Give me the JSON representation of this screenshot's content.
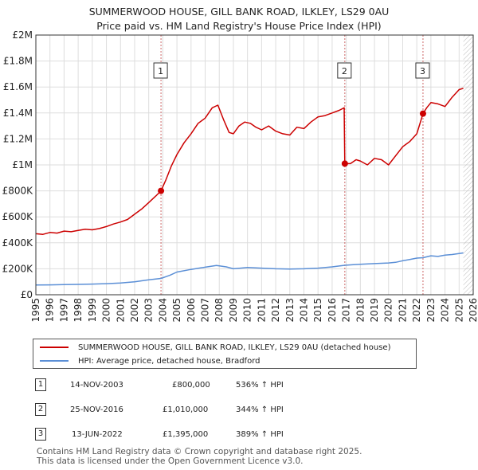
{
  "title_line1": "SUMMERWOOD HOUSE, GILL BANK ROAD, ILKLEY, LS29 0AU",
  "title_line2": "Price paid vs. HM Land Registry's House Price Index (HPI)",
  "legend": {
    "property": "SUMMERWOOD HOUSE, GILL BANK ROAD, ILKLEY, LS29 0AU (detached house)",
    "hpi": "HPI: Average price, detached house, Bradford"
  },
  "transactions": [
    {
      "num": "1",
      "date": "14-NOV-2003",
      "price": "£800,000",
      "hpi": "536% ↑ HPI"
    },
    {
      "num": "2",
      "date": "25-NOV-2016",
      "price": "£1,010,000",
      "hpi": "344% ↑ HPI"
    },
    {
      "num": "3",
      "date": "13-JUN-2022",
      "price": "£1,395,000",
      "hpi": "389% ↑ HPI"
    }
  ],
  "footer_line1": "Contains HM Land Registry data © Crown copyright and database right 2025.",
  "footer_line2": "This data is licensed under the Open Government Licence v3.0.",
  "chart_data": {
    "type": "line",
    "title": "SUMMERWOOD HOUSE, GILL BANK ROAD, ILKLEY, LS29 0AU",
    "subtitle": "Price paid vs. HM Land Registry's House Price Index (HPI)",
    "xlabel": "",
    "ylabel": "",
    "xlim": [
      1995,
      2026
    ],
    "ylim": [
      0,
      2000000
    ],
    "x_ticks": [
      1995,
      1996,
      1997,
      1998,
      1999,
      2000,
      2001,
      2002,
      2003,
      2004,
      2005,
      2006,
      2007,
      2008,
      2009,
      2010,
      2011,
      2012,
      2013,
      2014,
      2015,
      2016,
      2017,
      2018,
      2019,
      2020,
      2021,
      2022,
      2023,
      2024,
      2025,
      2026
    ],
    "y_ticks": [
      {
        "value": 0,
        "label": "£0"
      },
      {
        "value": 200000,
        "label": "£200K"
      },
      {
        "value": 400000,
        "label": "£400K"
      },
      {
        "value": 600000,
        "label": "£600K"
      },
      {
        "value": 800000,
        "label": "£800K"
      },
      {
        "value": 1000000,
        "label": "£1M"
      },
      {
        "value": 1200000,
        "label": "£1.2M"
      },
      {
        "value": 1400000,
        "label": "£1.4M"
      },
      {
        "value": 1600000,
        "label": "£1.6M"
      },
      {
        "value": 1800000,
        "label": "£1.8M"
      },
      {
        "value": 2000000,
        "label": "£2M"
      }
    ],
    "grid": true,
    "colors": {
      "property": "#cc0000",
      "hpi": "#5b8fd6",
      "grid": "#dddddd",
      "vline": "#cc6666"
    },
    "series": [
      {
        "name": "SUMMERWOOD HOUSE, GILL BANK ROAD, ILKLEY, LS29 0AU (detached house)",
        "color": "#cc0000",
        "x": [
          1995.0,
          1995.5,
          1996.0,
          1996.5,
          1997.0,
          1997.5,
          1998.0,
          1998.5,
          1999.0,
          1999.5,
          2000.0,
          2000.5,
          2001.0,
          2001.5,
          2002.0,
          2002.5,
          2003.0,
          2003.5,
          2003.87,
          2004.2,
          2004.6,
          2005.0,
          2005.5,
          2006.0,
          2006.5,
          2007.0,
          2007.5,
          2007.9,
          2008.3,
          2008.7,
          2009.0,
          2009.4,
          2009.8,
          2010.2,
          2010.6,
          2011.0,
          2011.5,
          2012.0,
          2012.5,
          2013.0,
          2013.5,
          2014.0,
          2014.5,
          2015.0,
          2015.5,
          2016.0,
          2016.5,
          2016.85,
          2016.9,
          2017.3,
          2017.7,
          2018.0,
          2018.5,
          2019.0,
          2019.5,
          2020.0,
          2020.5,
          2021.0,
          2021.5,
          2022.0,
          2022.44,
          2022.7,
          2023.0,
          2023.5,
          2024.0,
          2024.5,
          2025.0,
          2025.3
        ],
        "values": [
          470000,
          465000,
          480000,
          475000,
          490000,
          485000,
          495000,
          505000,
          500000,
          510000,
          525000,
          545000,
          560000,
          580000,
          620000,
          660000,
          710000,
          760000,
          800000,
          880000,
          990000,
          1080000,
          1170000,
          1240000,
          1320000,
          1360000,
          1440000,
          1460000,
          1350000,
          1250000,
          1240000,
          1300000,
          1330000,
          1320000,
          1290000,
          1270000,
          1300000,
          1260000,
          1240000,
          1230000,
          1290000,
          1280000,
          1330000,
          1370000,
          1380000,
          1400000,
          1420000,
          1440000,
          1010000,
          1010000,
          1040000,
          1030000,
          1000000,
          1050000,
          1040000,
          1000000,
          1070000,
          1140000,
          1180000,
          1240000,
          1395000,
          1440000,
          1480000,
          1470000,
          1450000,
          1520000,
          1580000,
          1590000
        ]
      },
      {
        "name": "HPI: Average price, detached house, Bradford",
        "color": "#5b8fd6",
        "x": [
          1995.0,
          1996.0,
          1997.0,
          1998.0,
          1999.0,
          2000.0,
          2001.0,
          2002.0,
          2003.0,
          2003.87,
          2004.5,
          2005.0,
          2006.0,
          2007.0,
          2007.8,
          2008.5,
          2009.0,
          2009.5,
          2010.0,
          2011.0,
          2012.0,
          2013.0,
          2014.0,
          2015.0,
          2016.0,
          2016.9,
          2017.5,
          2018.0,
          2019.0,
          2020.0,
          2020.5,
          2021.0,
          2021.5,
          2022.0,
          2022.44,
          2023.0,
          2023.5,
          2024.0,
          2024.5,
          2025.0,
          2025.3
        ],
        "values": [
          75000,
          76000,
          78000,
          80000,
          82000,
          85000,
          90000,
          100000,
          115000,
          126000,
          150000,
          175000,
          195000,
          212000,
          225000,
          215000,
          200000,
          205000,
          210000,
          205000,
          200000,
          198000,
          200000,
          205000,
          215000,
          227000,
          232000,
          235000,
          240000,
          245000,
          250000,
          262000,
          272000,
          282000,
          285000,
          300000,
          295000,
          305000,
          310000,
          318000,
          322000
        ]
      }
    ],
    "sales": [
      {
        "label": "1",
        "x": 2003.87,
        "value": 800000
      },
      {
        "label": "2",
        "x": 2016.9,
        "value": 1010000
      },
      {
        "label": "3",
        "x": 2022.44,
        "value": 1395000
      }
    ],
    "hatch_from": 2025.3
  }
}
